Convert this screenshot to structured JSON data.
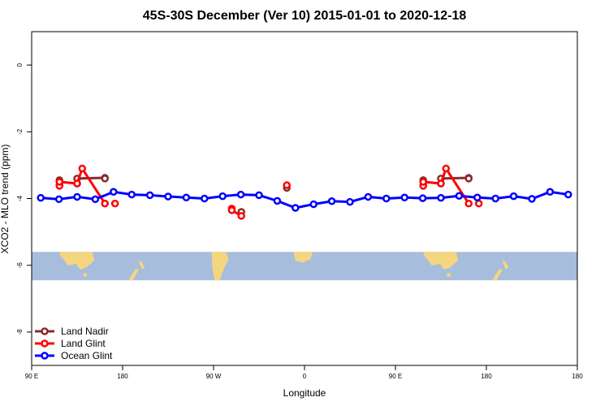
{
  "chart_data": {
    "type": "line",
    "title": "45S-30S December (Ver 10)   2015-01-01 to 2020-12-18",
    "xlabel": "Longitude",
    "ylabel": "XCO2 - MLO trend (ppm)",
    "xlim": [
      0,
      540
    ],
    "ylim": [
      -9,
      1
    ],
    "x_ticks": [
      {
        "value": 0,
        "label": "90 E"
      },
      {
        "value": 90,
        "label": "180"
      },
      {
        "value": 180,
        "label": "90 W"
      },
      {
        "value": 270,
        "label": "0"
      },
      {
        "value": 360,
        "label": "90 E"
      },
      {
        "value": 450,
        "label": "180"
      }
    ],
    "y_ticks": [
      0,
      -2,
      -4,
      -6,
      -8
    ],
    "y_tick_labels": [
      "0",
      "-2",
      "-4",
      "-6",
      "-8"
    ],
    "map_band": {
      "y_range": [
        -6.45,
        -5.6
      ],
      "ocean_color": "#a7bddc",
      "land_color": "#f5d67f"
    },
    "legend_position": "bottom-left",
    "series": [
      {
        "name": "Land Nadir",
        "color": "#8b2b2b",
        "points": [
          [
            27.5,
            -3.45
          ],
          [
            27.5,
            -3.6
          ],
          [
            45,
            -3.55
          ],
          [
            45,
            -3.4
          ],
          [
            72.5,
            -3.38
          ],
          [
            72.5,
            -3.4
          ],
          [
            207.5,
            -4.4
          ],
          [
            252.5,
            -3.68
          ],
          [
            387.5,
            -3.45
          ],
          [
            387.5,
            -3.6
          ],
          [
            405,
            -3.55
          ],
          [
            405,
            -3.4
          ],
          [
            432.5,
            -3.38
          ],
          [
            432.5,
            -3.4
          ]
        ]
      },
      {
        "name": "Land Glint",
        "color": "#ff0000",
        "segments": [
          [
            [
              27.5,
              -3.62
            ],
            [
              27.5,
              -3.5
            ],
            [
              45,
              -3.55
            ],
            [
              50,
              -3.1
            ],
            [
              72.5,
              -4.15
            ]
          ],
          [
            [
              82.5,
              -4.15
            ]
          ],
          [
            [
              198,
              -4.3
            ],
            [
              198,
              -4.35
            ],
            [
              207.5,
              -4.52
            ]
          ],
          [
            [
              252.5,
              -3.6
            ]
          ],
          [
            [
              387.5,
              -3.62
            ],
            [
              387.5,
              -3.5
            ],
            [
              405,
              -3.55
            ],
            [
              410,
              -3.1
            ],
            [
              432.5,
              -4.15
            ]
          ],
          [
            [
              442.5,
              -4.15
            ]
          ]
        ]
      },
      {
        "name": "Ocean Glint",
        "color": "#0000ff",
        "points": [
          [
            9,
            -3.98
          ],
          [
            27,
            -4.02
          ],
          [
            45,
            -3.95
          ],
          [
            63,
            -4.02
          ],
          [
            81,
            -3.8
          ],
          [
            99,
            -3.88
          ],
          [
            117,
            -3.9
          ],
          [
            135,
            -3.94
          ],
          [
            153,
            -3.97
          ],
          [
            171,
            -4.0
          ],
          [
            189,
            -3.93
          ],
          [
            207,
            -3.88
          ],
          [
            225,
            -3.9
          ],
          [
            243,
            -4.07
          ],
          [
            261,
            -4.28
          ],
          [
            279,
            -4.17
          ],
          [
            297,
            -4.08
          ],
          [
            315,
            -4.1
          ],
          [
            333,
            -3.95
          ],
          [
            351,
            -4.0
          ],
          [
            369,
            -3.97
          ],
          [
            387,
            -3.99
          ],
          [
            405,
            -3.98
          ],
          [
            423,
            -3.92
          ],
          [
            441,
            -3.97
          ],
          [
            459,
            -4.0
          ],
          [
            477,
            -3.93
          ],
          [
            495,
            -4.01
          ],
          [
            513,
            -3.8
          ],
          [
            531,
            -3.88
          ]
        ]
      }
    ]
  }
}
